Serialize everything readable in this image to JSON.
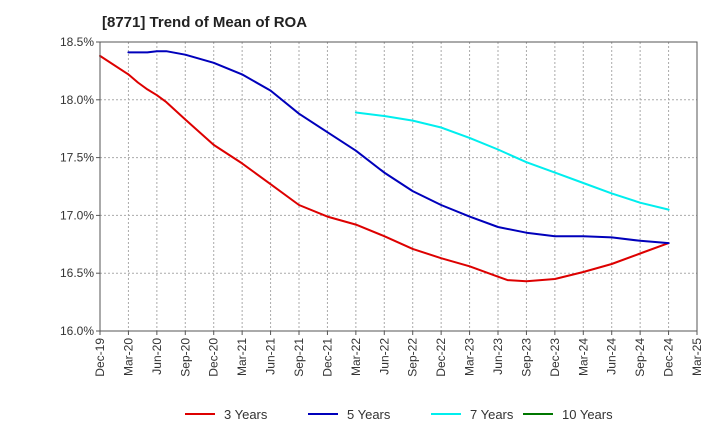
{
  "chart_data": {
    "type": "line",
    "title": "[8771]  Trend of Mean of ROA",
    "xlabel": "",
    "ylabel": "",
    "y_ticks": [
      "16.0%",
      "16.5%",
      "17.0%",
      "17.5%",
      "18.0%",
      "18.5%"
    ],
    "ylim": [
      16.0,
      18.5
    ],
    "x_ticks": [
      "Dec-19",
      "Mar-20",
      "Jun-20",
      "Sep-20",
      "Dec-20",
      "Mar-21",
      "Jun-21",
      "Sep-21",
      "Dec-21",
      "Mar-22",
      "Jun-22",
      "Sep-22",
      "Dec-22",
      "Mar-23",
      "Jun-23",
      "Sep-23",
      "Dec-23",
      "Mar-24",
      "Jun-24",
      "Sep-24",
      "Dec-24",
      "Mar-25"
    ],
    "grid": true,
    "legend_position": "bottom",
    "series": [
      {
        "name": "3 Years",
        "color": "#dd0000",
        "values": [
          {
            "x": "Dec-19",
            "y": 18.38
          },
          {
            "x": "Mar-20",
            "y": 18.22
          },
          {
            "x": "Apr-20",
            "y": 18.15
          },
          {
            "x": "May-20",
            "y": 18.09
          },
          {
            "x": "Jun-20",
            "y": 18.04
          },
          {
            "x": "Jul-20",
            "y": 17.98
          },
          {
            "x": "Sep-20",
            "y": 17.83
          },
          {
            "x": "Dec-20",
            "y": 17.61
          },
          {
            "x": "Mar-21",
            "y": 17.45
          },
          {
            "x": "Jun-21",
            "y": 17.27
          },
          {
            "x": "Sep-21",
            "y": 17.09
          },
          {
            "x": "Dec-21",
            "y": 16.99
          },
          {
            "x": "Mar-22",
            "y": 16.92
          },
          {
            "x": "Jun-22",
            "y": 16.82
          },
          {
            "x": "Sep-22",
            "y": 16.71
          },
          {
            "x": "Dec-22",
            "y": 16.63
          },
          {
            "x": "Mar-23",
            "y": 16.56
          },
          {
            "x": "Jun-23",
            "y": 16.47
          },
          {
            "x": "Jul-23",
            "y": 16.44
          },
          {
            "x": "Sep-23",
            "y": 16.43
          },
          {
            "x": "Dec-23",
            "y": 16.45
          },
          {
            "x": "Mar-24",
            "y": 16.51
          },
          {
            "x": "Jun-24",
            "y": 16.58
          },
          {
            "x": "Sep-24",
            "y": 16.67
          },
          {
            "x": "Dec-24",
            "y": 16.76
          }
        ]
      },
      {
        "name": "5 Years",
        "color": "#0000bb",
        "values": [
          {
            "x": "Mar-20",
            "y": 18.41
          },
          {
            "x": "Apr-20",
            "y": 18.41
          },
          {
            "x": "May-20",
            "y": 18.41
          },
          {
            "x": "Jun-20",
            "y": 18.42
          },
          {
            "x": "Jul-20",
            "y": 18.42
          },
          {
            "x": "Sep-20",
            "y": 18.39
          },
          {
            "x": "Dec-20",
            "y": 18.32
          },
          {
            "x": "Mar-21",
            "y": 18.22
          },
          {
            "x": "Jun-21",
            "y": 18.08
          },
          {
            "x": "Sep-21",
            "y": 17.88
          },
          {
            "x": "Dec-21",
            "y": 17.72
          },
          {
            "x": "Mar-22",
            "y": 17.56
          },
          {
            "x": "Jun-22",
            "y": 17.37
          },
          {
            "x": "Sep-22",
            "y": 17.21
          },
          {
            "x": "Dec-22",
            "y": 17.09
          },
          {
            "x": "Mar-23",
            "y": 16.99
          },
          {
            "x": "Jun-23",
            "y": 16.9
          },
          {
            "x": "Sep-23",
            "y": 16.85
          },
          {
            "x": "Dec-23",
            "y": 16.82
          },
          {
            "x": "Mar-24",
            "y": 16.82
          },
          {
            "x": "Jun-24",
            "y": 16.81
          },
          {
            "x": "Sep-24",
            "y": 16.78
          },
          {
            "x": "Dec-24",
            "y": 16.76
          }
        ]
      },
      {
        "name": "7 Years",
        "color": "#00eeee",
        "values": [
          {
            "x": "Mar-22",
            "y": 17.89
          },
          {
            "x": "Jun-22",
            "y": 17.86
          },
          {
            "x": "Sep-22",
            "y": 17.82
          },
          {
            "x": "Dec-22",
            "y": 17.76
          },
          {
            "x": "Mar-23",
            "y": 17.67
          },
          {
            "x": "Jun-23",
            "y": 17.57
          },
          {
            "x": "Sep-23",
            "y": 17.46
          },
          {
            "x": "Dec-23",
            "y": 17.37
          },
          {
            "x": "Mar-24",
            "y": 17.28
          },
          {
            "x": "Jun-24",
            "y": 17.19
          },
          {
            "x": "Sep-24",
            "y": 17.11
          },
          {
            "x": "Dec-24",
            "y": 17.05
          }
        ]
      },
      {
        "name": "10 Years",
        "color": "#007700",
        "values": []
      }
    ]
  }
}
